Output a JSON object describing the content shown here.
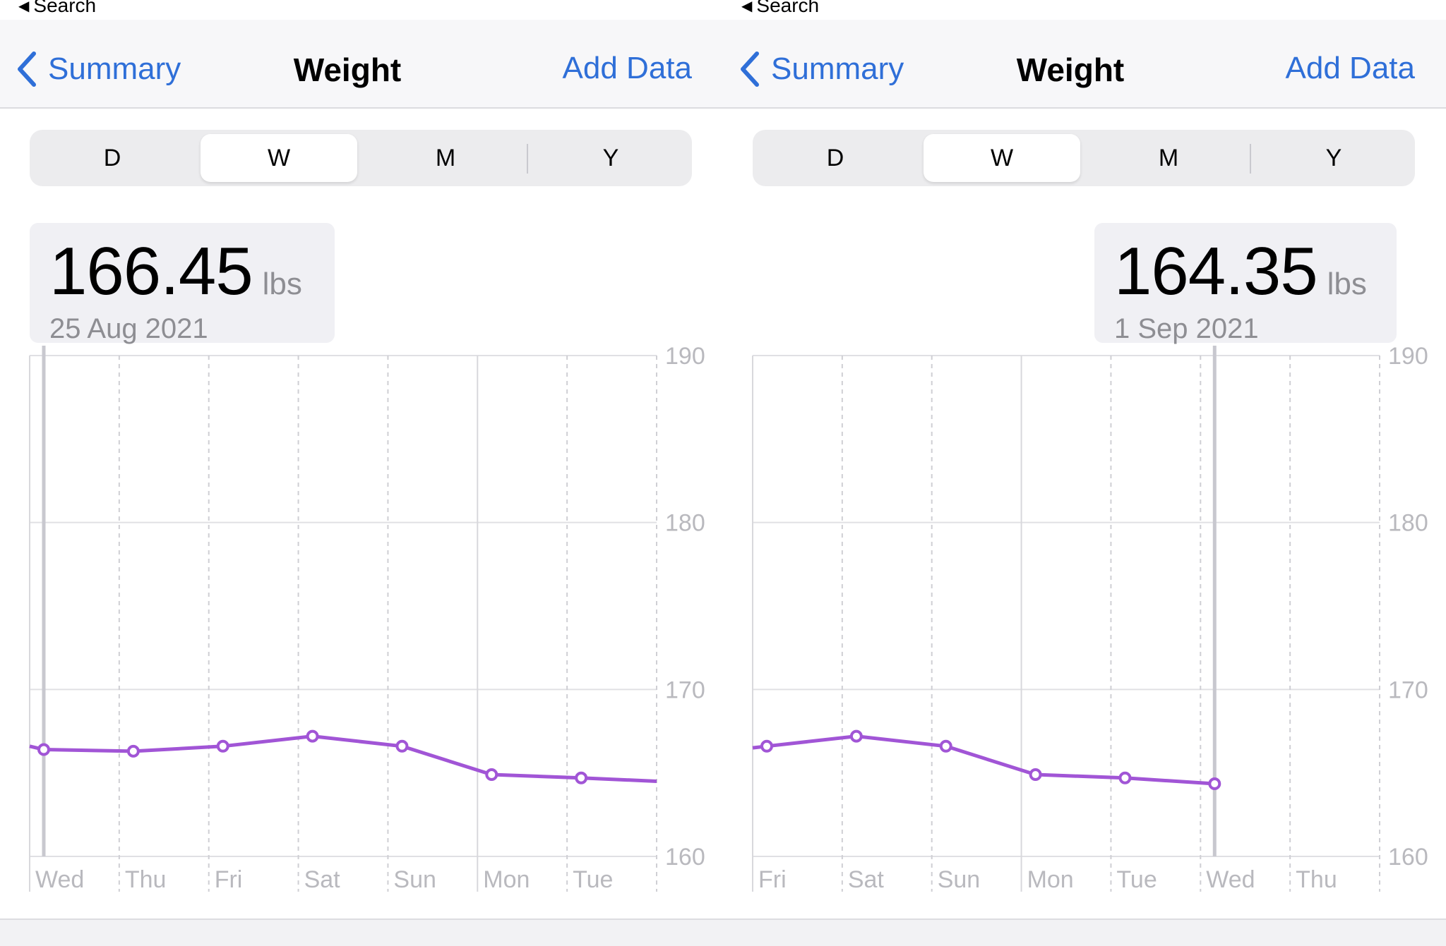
{
  "colors": {
    "accent": "#2f6fd8",
    "series": "#a155d6",
    "highlight": "#c8c8cf"
  },
  "left": {
    "status": {
      "back_label": "Search"
    },
    "nav": {
      "back_label": "Summary",
      "title": "Weight",
      "action_label": "Add Data"
    },
    "tabs": [
      "D",
      "W",
      "M",
      "Y"
    ],
    "selected_tab": "W",
    "readout": {
      "value": "166.45",
      "unit": "lbs",
      "date": "25 Aug 2021"
    },
    "chart_data": {
      "type": "line",
      "x": [
        "Wed",
        "Thu",
        "Fri",
        "Sat",
        "Sun",
        "Mon",
        "Tue"
      ],
      "series": [
        {
          "values": [
            166.4,
            166.3,
            166.6,
            167.2,
            166.6,
            164.9,
            164.7
          ]
        }
      ],
      "ylim": [
        160,
        190
      ],
      "yticks": [
        "190",
        "180",
        "170",
        "160"
      ],
      "highlight_index": 0,
      "trend_in": 166.6,
      "trend_out": 164.5
    }
  },
  "right": {
    "status": {
      "back_label": "Search"
    },
    "nav": {
      "back_label": "Summary",
      "title": "Weight",
      "action_label": "Add Data"
    },
    "tabs": [
      "D",
      "W",
      "M",
      "Y"
    ],
    "selected_tab": "W",
    "readout": {
      "value": "164.35",
      "unit": "lbs",
      "date": "1 Sep 2021"
    },
    "chart_data": {
      "type": "line",
      "x": [
        "Fri",
        "Sat",
        "Sun",
        "Mon",
        "Tue",
        "Wed",
        "Thu"
      ],
      "series": [
        {
          "values": [
            166.6,
            167.2,
            166.6,
            164.9,
            164.7,
            164.35,
            null
          ]
        }
      ],
      "ylim": [
        160,
        190
      ],
      "yticks": [
        "190",
        "180",
        "170",
        "160"
      ],
      "highlight_index": 5,
      "trend_in": 166.5,
      "trend_out": null
    }
  }
}
